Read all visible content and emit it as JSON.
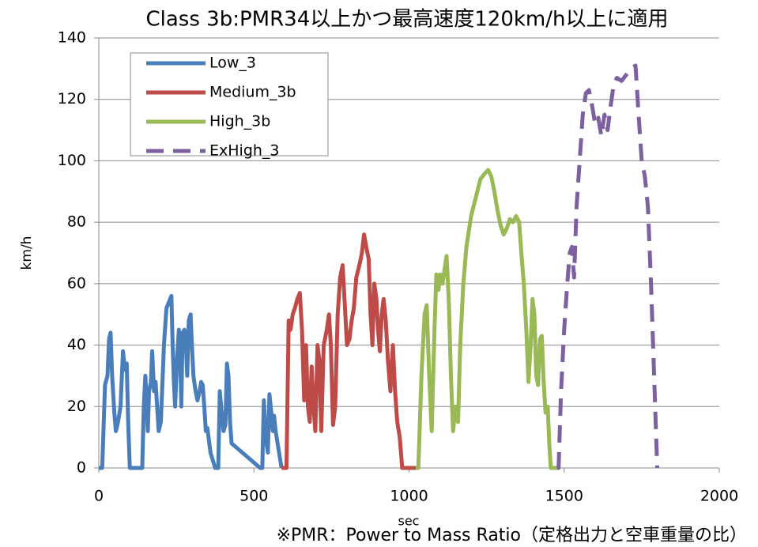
{
  "chart_data": {
    "type": "line",
    "title": "Class 3b:PMR34以上かつ最高速度120km/h以上に適用",
    "x_label": "sec",
    "y_label": "km/h",
    "annotation": "※PMR：Power to Mass Ratio（定格出力と空車重量の比）",
    "xlim": [
      0,
      2000
    ],
    "xticks": [
      0,
      500,
      1000,
      1500,
      2000
    ],
    "ylim": [
      0,
      140
    ],
    "yticks": [
      0,
      20,
      40,
      60,
      80,
      100,
      120,
      140
    ],
    "grid": true,
    "legend": "upper left",
    "series": [
      {
        "name": "Low_3",
        "color": "#4a7ebb",
        "dashed": false,
        "x": [
          0,
          11,
          20,
          28,
          33,
          38,
          43,
          50,
          55,
          62,
          70,
          78,
          84,
          90,
          95,
          100,
          130,
          140,
          145,
          150,
          155,
          158,
          162,
          168,
          172,
          178,
          183,
          188,
          193,
          200,
          210,
          218,
          234,
          238,
          242,
          246,
          252,
          258,
          262,
          266,
          270,
          276,
          280,
          285,
          290,
          296,
          300,
          305,
          312,
          318,
          325,
          330,
          335,
          340,
          345,
          350,
          360,
          375,
          385,
          390,
          396,
          402,
          408,
          413,
          418,
          423,
          428,
          520,
          527,
          532,
          538,
          545,
          550,
          556,
          561,
          565,
          570,
          589
        ],
        "values": [
          0,
          0,
          27,
          30,
          42,
          44,
          30,
          18,
          12,
          15,
          20,
          38,
          32,
          34,
          14,
          0,
          0,
          0,
          20,
          30,
          20,
          12,
          25,
          28,
          38,
          25,
          28,
          20,
          12,
          15,
          40,
          52,
          56,
          40,
          28,
          20,
          35,
          45,
          38,
          20,
          44,
          45,
          42,
          30,
          48,
          50,
          40,
          30,
          25,
          22,
          25,
          28,
          27,
          20,
          12,
          13,
          5,
          0,
          0,
          25,
          18,
          12,
          14,
          34,
          30,
          15,
          8,
          0,
          0,
          22,
          10,
          5,
          24,
          18,
          12,
          17,
          12,
          0
        ]
      },
      {
        "name": "Medium_3b",
        "color": "#be4b48",
        "dashed": false,
        "x": [
          589,
          605,
          612,
          618,
          625,
          632,
          640,
          648,
          655,
          662,
          668,
          674,
          680,
          686,
          692,
          698,
          705,
          711,
          717,
          725,
          735,
          742,
          748,
          755,
          762,
          770,
          778,
          786,
          792,
          800,
          808,
          815,
          822,
          830,
          840,
          848,
          855,
          862,
          870,
          876,
          882,
          888,
          895,
          900,
          906,
          912,
          918,
          925,
          932,
          940,
          948,
          955,
          962,
          970,
          978,
          1022
        ],
        "values": [
          0,
          0,
          48,
          45,
          50,
          52,
          55,
          57,
          45,
          22,
          40,
          20,
          15,
          33,
          20,
          12,
          40,
          35,
          12,
          40,
          45,
          50,
          40,
          14,
          20,
          50,
          62,
          66,
          55,
          40,
          42,
          48,
          52,
          62,
          66,
          70,
          76,
          72,
          68,
          50,
          40,
          60,
          55,
          45,
          38,
          50,
          55,
          48,
          35,
          25,
          40,
          25,
          15,
          10,
          0,
          0
        ]
      },
      {
        "name": "High_3b",
        "color": "#98b954",
        "dashed": false,
        "x": [
          1022,
          1030,
          1040,
          1050,
          1057,
          1065,
          1073,
          1082,
          1088,
          1095,
          1100,
          1108,
          1115,
          1121,
          1128,
          1135,
          1142,
          1150,
          1158,
          1165,
          1175,
          1185,
          1200,
          1215,
          1230,
          1245,
          1255,
          1265,
          1275,
          1285,
          1295,
          1305,
          1315,
          1325,
          1335,
          1345,
          1355,
          1362,
          1370,
          1378,
          1385,
          1392,
          1398,
          1404,
          1410,
          1416,
          1422,
          1428,
          1434,
          1440,
          1447,
          1452,
          1457,
          1477
        ],
        "values": [
          0,
          0,
          30,
          50,
          53,
          30,
          12,
          45,
          63,
          58,
          63,
          60,
          65,
          69,
          55,
          30,
          12,
          20,
          15,
          40,
          60,
          72,
          82,
          88,
          94,
          96,
          97,
          95,
          90,
          84,
          79,
          76,
          78,
          81,
          80,
          82,
          80,
          70,
          60,
          45,
          28,
          40,
          55,
          50,
          30,
          27,
          42,
          43,
          28,
          18,
          20,
          8,
          0,
          0
        ]
      },
      {
        "name": "ExHigh_3",
        "color": "#7d60a0",
        "dashed": true,
        "x": [
          1477,
          1482,
          1490,
          1500,
          1510,
          1518,
          1525,
          1532,
          1540,
          1550,
          1560,
          1570,
          1580,
          1590,
          1600,
          1610,
          1620,
          1630,
          1640,
          1650,
          1660,
          1670,
          1685,
          1700,
          1715,
          1730,
          1740,
          1750,
          1760,
          1770,
          1780,
          1790,
          1800
        ],
        "values": [
          0,
          0,
          25,
          45,
          60,
          70,
          72,
          62,
          85,
          100,
          115,
          122,
          123,
          118,
          112,
          114,
          108,
          115,
          110,
          118,
          125,
          127,
          126,
          128,
          130,
          131,
          115,
          100,
          95,
          85,
          60,
          30,
          0
        ]
      }
    ]
  }
}
